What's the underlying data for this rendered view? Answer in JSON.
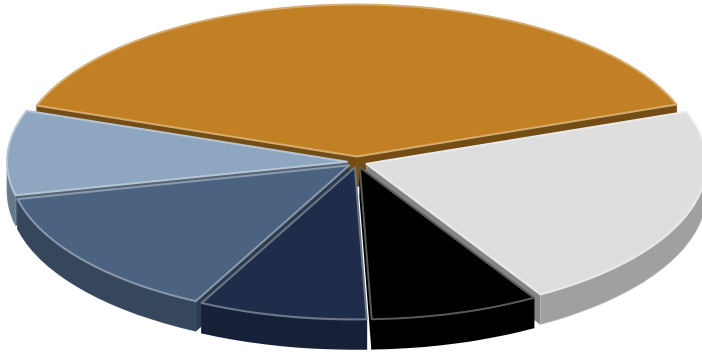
{
  "chart_data": {
    "type": "pie",
    "style": "3d-exploded-pie",
    "title": "",
    "legend": "none",
    "data_labels": "none",
    "slices": [
      {
        "value": 39,
        "color": "#C08023"
      },
      {
        "value": 9,
        "color": "#8EA6BF"
      },
      {
        "value": 14,
        "color": "#4B6280"
      },
      {
        "value": 8,
        "color": "#1F2D4B"
      },
      {
        "value": 8,
        "color": "#000000"
      },
      {
        "value": 22,
        "color": "#DEDEDE"
      }
    ]
  }
}
